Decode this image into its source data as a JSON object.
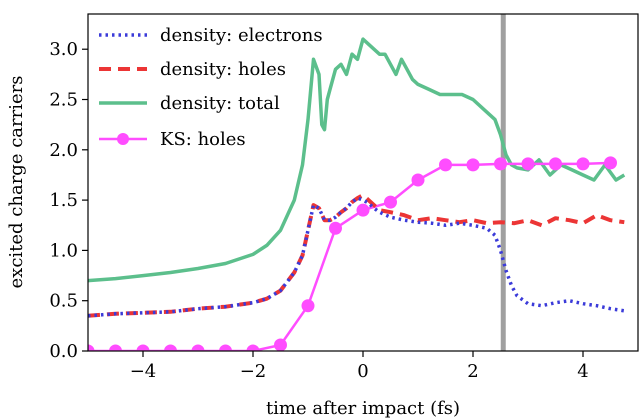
{
  "chart_data": {
    "type": "line",
    "xlabel": "time after impact (fs)",
    "ylabel": "excited charge carriers",
    "xlim": [
      -5,
      5
    ],
    "ylim": [
      0,
      3.35
    ],
    "xticks": [
      -4,
      -2,
      0,
      2,
      4
    ],
    "xtick_labels": [
      "−4",
      "−2",
      "0",
      "2",
      "4"
    ],
    "yticks": [
      0,
      0.5,
      1,
      1.5,
      2,
      2.5,
      3
    ],
    "ytick_labels": [
      "0.0",
      "0.5",
      "1.0",
      "1.5",
      "2.0",
      "2.5",
      "3.0"
    ],
    "legend_position": "top-left",
    "vertical_marker": {
      "x": 2.55,
      "color": "#a0a0a0"
    },
    "series": [
      {
        "name": "density: electrons",
        "color": "#3b3bd9",
        "style": "dotted",
        "x": [
          -5,
          -4.5,
          -4,
          -3.5,
          -3,
          -2.5,
          -2,
          -1.75,
          -1.5,
          -1.25,
          -1.1,
          -1,
          -0.9,
          -0.8,
          -0.7,
          -0.6,
          -0.5,
          -0.4,
          -0.3,
          -0.2,
          -0.1,
          0,
          0.1,
          0.2,
          0.3,
          0.5,
          0.75,
          1,
          1.25,
          1.5,
          1.75,
          2,
          2.25,
          2.4,
          2.5,
          2.6,
          2.7,
          2.8,
          3,
          3.25,
          3.5,
          3.75,
          4,
          4.25,
          4.5,
          4.75
        ],
        "values": [
          0.35,
          0.37,
          0.38,
          0.39,
          0.42,
          0.44,
          0.48,
          0.52,
          0.6,
          0.78,
          0.95,
          1.2,
          1.45,
          1.42,
          1.3,
          1.3,
          1.33,
          1.38,
          1.42,
          1.48,
          1.52,
          1.5,
          1.47,
          1.42,
          1.38,
          1.33,
          1.3,
          1.28,
          1.27,
          1.25,
          1.27,
          1.25,
          1.22,
          1.15,
          1.0,
          0.8,
          0.65,
          0.55,
          0.47,
          0.45,
          0.48,
          0.5,
          0.47,
          0.45,
          0.42,
          0.4
        ]
      },
      {
        "name": "density: holes",
        "color": "#ec3535",
        "style": "dashed",
        "x": [
          -5,
          -4.5,
          -4,
          -3.5,
          -3,
          -2.5,
          -2,
          -1.75,
          -1.5,
          -1.25,
          -1.1,
          -1,
          -0.9,
          -0.8,
          -0.7,
          -0.6,
          -0.5,
          -0.4,
          -0.3,
          -0.2,
          -0.1,
          0,
          0.1,
          0.2,
          0.3,
          0.5,
          0.75,
          1,
          1.25,
          1.5,
          1.75,
          2,
          2.25,
          2.5,
          2.75,
          3,
          3.25,
          3.5,
          3.75,
          4,
          4.25,
          4.5,
          4.75
        ],
        "values": [
          0.35,
          0.37,
          0.38,
          0.39,
          0.42,
          0.44,
          0.48,
          0.52,
          0.6,
          0.78,
          0.95,
          1.2,
          1.45,
          1.42,
          1.3,
          1.3,
          1.33,
          1.38,
          1.42,
          1.48,
          1.52,
          1.55,
          1.5,
          1.45,
          1.4,
          1.38,
          1.35,
          1.3,
          1.32,
          1.3,
          1.28,
          1.3,
          1.27,
          1.28,
          1.27,
          1.3,
          1.25,
          1.32,
          1.3,
          1.27,
          1.35,
          1.3,
          1.28
        ]
      },
      {
        "name": "density: total",
        "color": "#5cbf8c",
        "style": "solid",
        "x": [
          -5,
          -4.5,
          -4,
          -3.5,
          -3,
          -2.5,
          -2,
          -1.75,
          -1.5,
          -1.25,
          -1.1,
          -1,
          -0.9,
          -0.8,
          -0.75,
          -0.7,
          -0.65,
          -0.6,
          -0.5,
          -0.4,
          -0.3,
          -0.2,
          -0.1,
          0,
          0.1,
          0.2,
          0.3,
          0.4,
          0.5,
          0.6,
          0.7,
          0.8,
          0.9,
          1,
          1.2,
          1.4,
          1.6,
          1.8,
          2,
          2.2,
          2.4,
          2.5,
          2.6,
          2.7,
          2.8,
          3,
          3.2,
          3.4,
          3.6,
          3.8,
          4,
          4.2,
          4.4,
          4.6,
          4.75
        ],
        "values": [
          0.7,
          0.72,
          0.75,
          0.78,
          0.82,
          0.87,
          0.96,
          1.05,
          1.2,
          1.5,
          1.85,
          2.3,
          2.9,
          2.75,
          2.25,
          2.2,
          2.5,
          2.6,
          2.8,
          2.85,
          2.75,
          2.95,
          2.9,
          3.1,
          3.05,
          3.0,
          2.95,
          2.95,
          2.85,
          2.75,
          2.9,
          2.8,
          2.7,
          2.65,
          2.6,
          2.55,
          2.55,
          2.55,
          2.5,
          2.4,
          2.3,
          2.15,
          1.95,
          1.85,
          1.82,
          1.8,
          1.9,
          1.75,
          1.85,
          1.8,
          1.75,
          1.7,
          1.85,
          1.7,
          1.75
        ]
      },
      {
        "name": "KS: holes",
        "color": "#ff4dff",
        "style": "solid-markers",
        "x": [
          -5,
          -4.5,
          -4,
          -3.5,
          -3,
          -2.5,
          -2,
          -1.5,
          -1.0,
          -0.5,
          0,
          0.5,
          1.0,
          1.5,
          2.0,
          2.5,
          3.0,
          3.5,
          4.0,
          4.5
        ],
        "values": [
          0.0,
          0.0,
          0.0,
          0.0,
          0.0,
          0.0,
          0.0,
          0.06,
          0.45,
          1.22,
          1.4,
          1.48,
          1.7,
          1.85,
          1.85,
          1.86,
          1.86,
          1.86,
          1.86,
          1.87
        ]
      }
    ]
  }
}
